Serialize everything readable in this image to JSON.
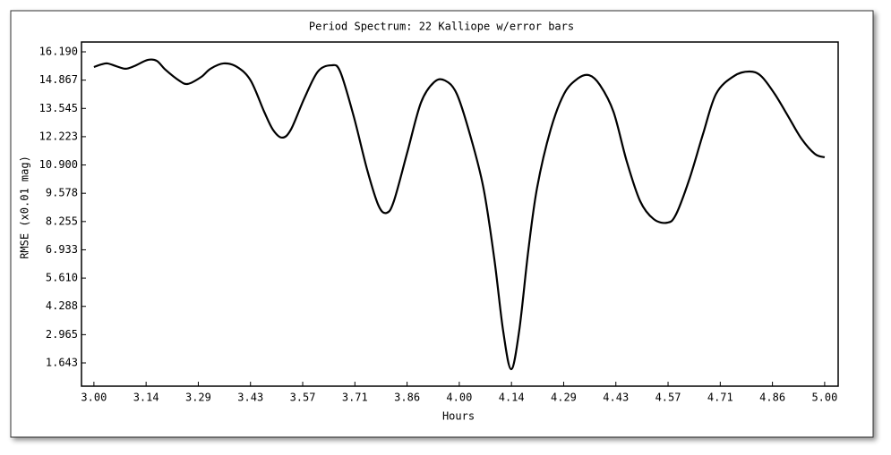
{
  "chart_data": {
    "type": "line",
    "title": "Period Spectrum: 22 Kalliope w/error bars",
    "x_label": "Hours",
    "y_label": "RMSE (x0.01 mag)",
    "x": [
      3.0,
      3.02,
      3.037,
      3.061,
      3.086,
      3.11,
      3.147,
      3.172,
      3.196,
      3.233,
      3.257,
      3.294,
      3.319,
      3.355,
      3.392,
      3.429,
      3.466,
      3.49,
      3.515,
      3.539,
      3.576,
      3.613,
      3.65,
      3.674,
      3.711,
      3.748,
      3.779,
      3.801,
      3.821,
      3.858,
      3.895,
      3.931,
      3.961,
      3.993,
      4.029,
      4.066,
      4.096,
      4.12,
      4.142,
      4.164,
      4.189,
      4.213,
      4.25,
      4.287,
      4.324,
      4.355,
      4.385,
      4.422,
      4.458,
      4.495,
      4.532,
      4.569,
      4.593,
      4.63,
      4.667,
      4.703,
      4.752,
      4.794,
      4.826,
      4.863,
      4.9,
      4.936,
      4.973,
      5.0
    ],
    "series": [
      {
        "color": "#000000",
        "values": [
          15.48,
          15.6,
          15.65,
          15.52,
          15.4,
          15.52,
          15.81,
          15.77,
          15.35,
          14.85,
          14.69,
          15.02,
          15.4,
          15.65,
          15.48,
          14.85,
          13.39,
          12.55,
          12.18,
          12.55,
          14.02,
          15.27,
          15.56,
          15.27,
          13.18,
          10.67,
          9.0,
          8.66,
          9.21,
          11.51,
          13.81,
          14.77,
          14.85,
          14.23,
          12.34,
          9.84,
          6.49,
          3.15,
          1.35,
          3.15,
          6.91,
          9.84,
          12.55,
          14.23,
          14.94,
          15.1,
          14.64,
          13.39,
          11.09,
          9.21,
          8.37,
          8.2,
          8.58,
          10.25,
          12.34,
          14.23,
          15.06,
          15.27,
          15.06,
          14.23,
          13.18,
          12.14,
          11.42,
          11.26
        ]
      }
    ],
    "xlim": [
      2.966,
      5.037
    ],
    "ylim": [
      0.556,
      16.65
    ],
    "xticks": [
      {
        "value": 3.0,
        "label": "3.00"
      },
      {
        "value": 3.142857,
        "label": "3.14"
      },
      {
        "value": 3.285714,
        "label": "3.29"
      },
      {
        "value": 3.428571,
        "label": "3.43"
      },
      {
        "value": 3.571429,
        "label": "3.57"
      },
      {
        "value": 3.714286,
        "label": "3.71"
      },
      {
        "value": 3.857143,
        "label": "3.86"
      },
      {
        "value": 4.0,
        "label": "4.00"
      },
      {
        "value": 4.142857,
        "label": "4.14"
      },
      {
        "value": 4.285714,
        "label": "4.29"
      },
      {
        "value": 4.428571,
        "label": "4.43"
      },
      {
        "value": 4.571429,
        "label": "4.57"
      },
      {
        "value": 4.714286,
        "label": "4.71"
      },
      {
        "value": 4.857143,
        "label": "4.86"
      },
      {
        "value": 5.0,
        "label": "5.00"
      }
    ],
    "yticks": [
      {
        "value": 16.19,
        "label": "16.190"
      },
      {
        "value": 14.867,
        "label": "14.867"
      },
      {
        "value": 13.545,
        "label": "13.545"
      },
      {
        "value": 12.223,
        "label": "12.223"
      },
      {
        "value": 10.9,
        "label": "10.900"
      },
      {
        "value": 9.578,
        "label": "9.578"
      },
      {
        "value": 8.255,
        "label": "8.255"
      },
      {
        "value": 6.933,
        "label": "6.933"
      },
      {
        "value": 5.61,
        "label": "5.610"
      },
      {
        "value": 4.288,
        "label": "4.288"
      },
      {
        "value": 2.965,
        "label": "2.965"
      },
      {
        "value": 1.643,
        "label": "1.643"
      }
    ],
    "grid": false
  }
}
